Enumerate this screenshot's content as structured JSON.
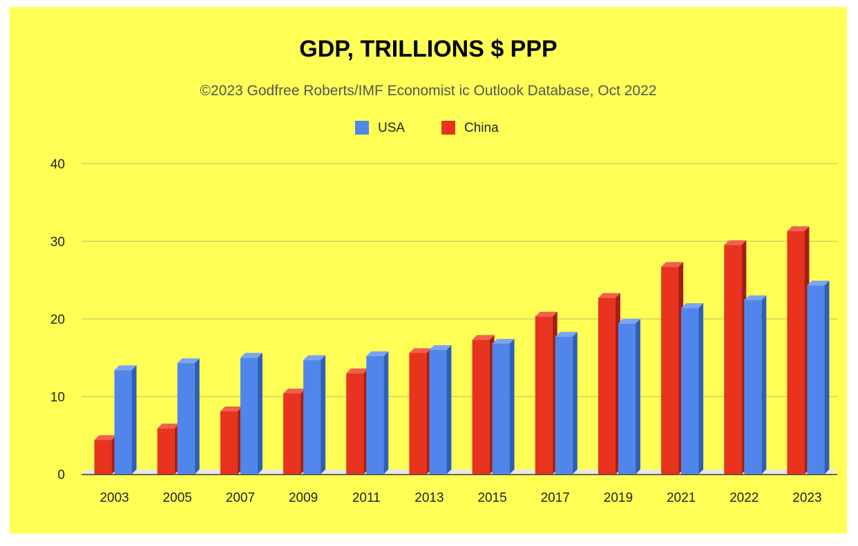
{
  "colors": {
    "background": "#ffff55",
    "usa_front": "#5086ec",
    "usa_side": "#2f5fb8",
    "usa_top": "#7aa4f2",
    "china_front": "#e8331f",
    "china_side": "#a61e12",
    "china_top": "#f0604e",
    "floor": "#e9e9e3"
  },
  "chart_data": {
    "type": "bar",
    "title": "GDP, TRILLIONS $ PPP",
    "subtitle": "©2023 Godfree Roberts/IMF Economist ic Outlook Database, Oct 2022",
    "xlabel": "",
    "ylabel": "",
    "ylim": [
      0,
      40
    ],
    "yticks": [
      0,
      10,
      20,
      30,
      40
    ],
    "grid": true,
    "style": "3d",
    "legend": {
      "position": "top-center"
    },
    "categories": [
      "2003",
      "2005",
      "2007",
      "2009",
      "2011",
      "2013",
      "2015",
      "2017",
      "2019",
      "2021",
      "2022",
      "2023"
    ],
    "series": [
      {
        "name": "China",
        "color": "#e8331f",
        "values": [
          4.4,
          5.9,
          8.1,
          10.4,
          13.0,
          15.6,
          17.3,
          20.3,
          22.7,
          26.7,
          29.5,
          31.3
        ]
      },
      {
        "name": "USA",
        "color": "#5086ec",
        "values": [
          13.4,
          14.3,
          15.0,
          14.7,
          15.2,
          16.0,
          16.8,
          17.7,
          19.4,
          21.4,
          22.4,
          24.3
        ]
      }
    ],
    "legend_order": [
      "USA",
      "China"
    ]
  }
}
